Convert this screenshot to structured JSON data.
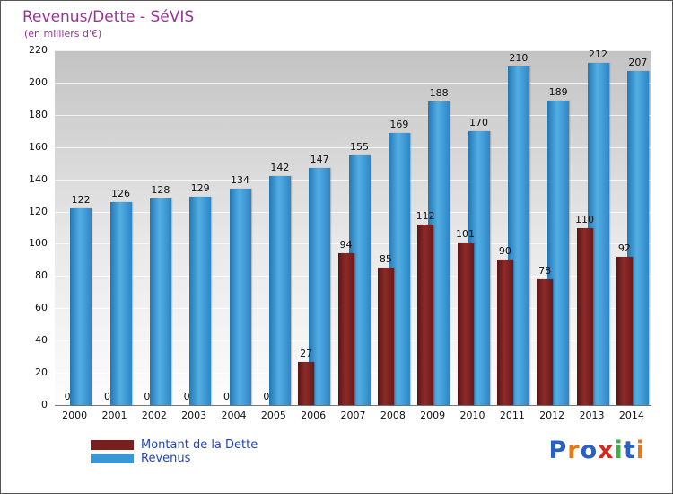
{
  "title": "Revenus/Dette - SéVIS",
  "subtitle": "(en milliers d'€)",
  "legend": {
    "dette_label": "Montant de la Dette",
    "revenus_label": "Revenus"
  },
  "colors": {
    "title": "#993399",
    "dette": "#7a1f1f",
    "revenus": "#3a97d3",
    "legend_text": "#2244bb"
  },
  "logo": {
    "letters": [
      {
        "ch": "P",
        "color": "#2a5fc4"
      },
      {
        "ch": "r",
        "color": "#e87817"
      },
      {
        "ch": "o",
        "color": "#2a5fc4"
      },
      {
        "ch": "x",
        "color": "#d42a1e"
      },
      {
        "ch": "i",
        "color": "#3fae49"
      },
      {
        "ch": "t",
        "color": "#2a5fc4"
      },
      {
        "ch": "i",
        "color": "#e87817"
      }
    ]
  },
  "chart_data": {
    "type": "bar",
    "title": "Revenus/Dette - SéVIS",
    "subtitle": "(en milliers d'€)",
    "categories": [
      "2000",
      "2001",
      "2002",
      "2003",
      "2004",
      "2005",
      "2006",
      "2007",
      "2008",
      "2009",
      "2010",
      "2011",
      "2012",
      "2013",
      "2014"
    ],
    "series": [
      {
        "name": "Montant de la Dette",
        "color": "#7a1f1f",
        "values": [
          0,
          0,
          0,
          0,
          0,
          0,
          27,
          94,
          85,
          112,
          101,
          90,
          78,
          110,
          92
        ]
      },
      {
        "name": "Revenus",
        "color": "#3a97d3",
        "values": [
          122,
          126,
          128,
          129,
          134,
          142,
          147,
          155,
          169,
          188,
          170,
          210,
          189,
          212,
          207
        ]
      }
    ],
    "ylim": [
      0,
      220
    ],
    "ytick_step": 20,
    "grid": true,
    "legend_position": "bottom-left",
    "xlabel": "",
    "ylabel": ""
  }
}
